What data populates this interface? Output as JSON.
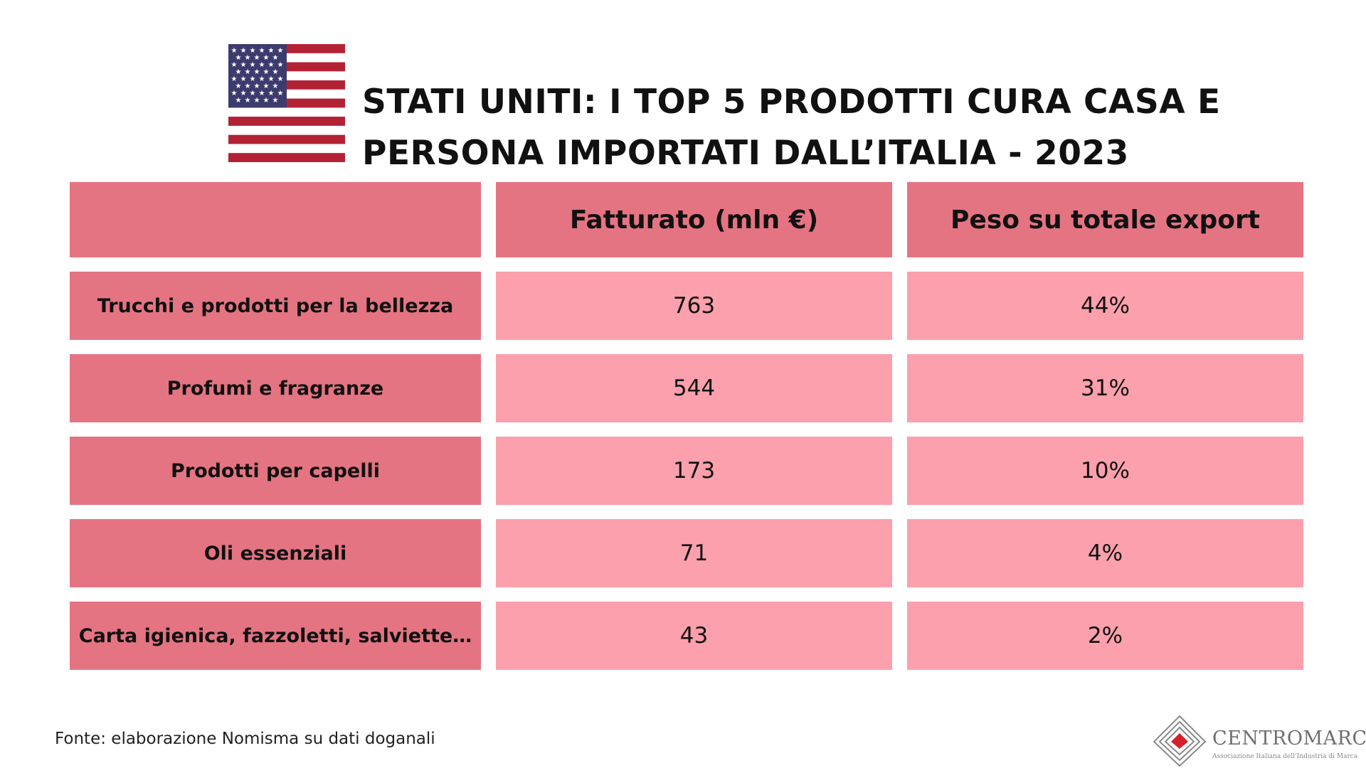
{
  "title_lines": [
    "STATI UNITI: I TOP 5 PRODOTTI CURA CASA E",
    "PERSONA IMPORTATI DALL’ITALIA - 2023"
  ],
  "flag_icon": "us-flag-icon",
  "colors": {
    "header_cell": "#e57482",
    "value_cell": "#fba0ac"
  },
  "chart_data": {
    "type": "table",
    "title": "STATI UNITI: I TOP 5 PRODOTTI CURA CASA E PERSONA IMPORTATI DALL’ITALIA - 2023",
    "columns": [
      "",
      "Fatturato (mln €)",
      "Peso su totale export"
    ],
    "rows": [
      {
        "label": "Trucchi e prodotti per la bellezza",
        "fatturato": "763",
        "peso": "44%"
      },
      {
        "label": "Profumi e fragranze",
        "fatturato": "544",
        "peso": "31%"
      },
      {
        "label": "Prodotti per capelli",
        "fatturato": "173",
        "peso": "10%"
      },
      {
        "label": "Oli essenziali",
        "fatturato": "71",
        "peso": "4%"
      },
      {
        "label": "Carta igienica, fazzoletti, salviette…",
        "fatturato": "43",
        "peso": "2%"
      }
    ]
  },
  "source": "Fonte: elaborazione Nomisma su dati doganali",
  "logo": {
    "name": "CENTROMARCA",
    "subtitle": "Associazione Italiana dell’Industria di Marca"
  }
}
